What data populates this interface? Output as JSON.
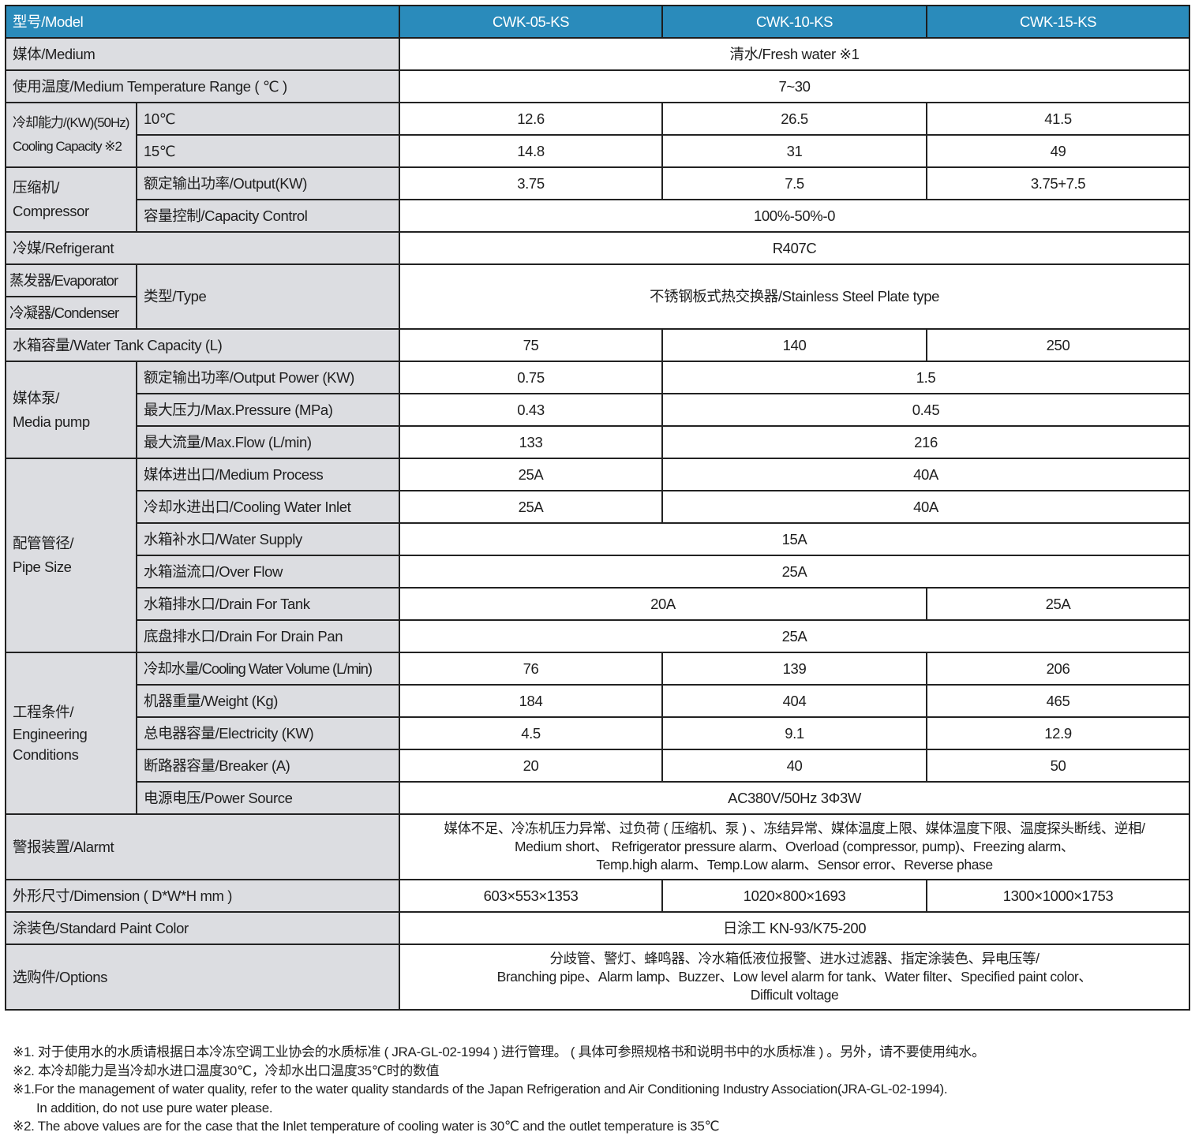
{
  "header": {
    "label": "型号/Model",
    "models": [
      "CWK-05-KS",
      "CWK-10-KS",
      "CWK-15-KS"
    ]
  },
  "medium": {
    "label": "媒体/Medium",
    "value": "清水/Fresh water ※1"
  },
  "temp_range": {
    "label": "使用温度/Medium Temperature Range ( ℃ )",
    "value": "7~30"
  },
  "cooling_capacity": {
    "label_cn": "冷却能力/(KW)(50Hz)",
    "label_en": "Cooling Capacity ※2",
    "rows": [
      {
        "label": "10℃",
        "values": [
          "12.6",
          "26.5",
          "41.5"
        ]
      },
      {
        "label": "15℃",
        "values": [
          "14.8",
          "31",
          "49"
        ]
      }
    ]
  },
  "compressor": {
    "label_cn": "压缩机/",
    "label_en": "Compressor",
    "output": {
      "label": "额定输出功率/Output(KW)",
      "values": [
        "3.75",
        "7.5",
        "3.75+7.5"
      ]
    },
    "capacity_control": {
      "label": "容量控制/Capacity Control",
      "value": "100%-50%-0"
    }
  },
  "refrigerant": {
    "label": "冷媒/Refrigerant",
    "value": "R407C"
  },
  "heat_exchanger": {
    "evaporator": "蒸发器/Evaporator",
    "condenser": "冷凝器/Condenser",
    "type_label": "类型/Type",
    "value": "不锈钢板式热交换器/Stainless Steel Plate type"
  },
  "water_tank": {
    "label": "水箱容量/Water Tank Capacity (L)",
    "values": [
      "75",
      "140",
      "250"
    ]
  },
  "media_pump": {
    "label_cn": "媒体泵/",
    "label_en": "Media pump",
    "output": {
      "label": "额定输出功率/Output Power (KW)",
      "values": [
        "0.75",
        "1.5"
      ]
    },
    "pressure": {
      "label": "最大压力/Max.Pressure (MPa)",
      "values": [
        "0.43",
        "0.45"
      ]
    },
    "flow": {
      "label": "最大流量/Max.Flow (L/min)",
      "values": [
        "133",
        "216"
      ]
    }
  },
  "pipe_size": {
    "label_cn": "配管管径/",
    "label_en": "Pipe Size",
    "medium_process": {
      "label": "媒体进出口/Medium Process",
      "values": [
        "25A",
        "40A"
      ]
    },
    "cooling_inlet": {
      "label": "冷却水进出口/Cooling Water Inlet",
      "values": [
        "25A",
        "40A"
      ]
    },
    "water_supply": {
      "label": "水箱补水口/Water Supply",
      "value": "15A"
    },
    "over_flow": {
      "label": "水箱溢流口/Over Flow",
      "value": "25A"
    },
    "drain_tank": {
      "label": "水箱排水口/Drain For Tank",
      "values": [
        "20A",
        "25A"
      ]
    },
    "drain_pan": {
      "label": "底盘排水口/Drain For Drain Pan",
      "value": "25A"
    }
  },
  "engineering": {
    "label_cn": "工程条件/",
    "label_en1": "Engineering",
    "label_en2": "Conditions",
    "cooling_water": {
      "label": "冷却水量/Cooling Water Volume (L/min)",
      "values": [
        "76",
        "139",
        "206"
      ]
    },
    "weight": {
      "label": "机器重量/Weight (Kg)",
      "values": [
        "184",
        "404",
        "465"
      ]
    },
    "electricity": {
      "label": "总电器容量/Electricity (KW)",
      "values": [
        "4.5",
        "9.1",
        "12.9"
      ]
    },
    "breaker": {
      "label": "断路器容量/Breaker (A)",
      "values": [
        "20",
        "40",
        "50"
      ]
    },
    "power": {
      "label": "电源电压/Power Source",
      "value": "AC380V/50Hz 3Φ3W"
    }
  },
  "alarm": {
    "label": "警报装置/Alarmt",
    "lines": [
      "媒体不足、冷冻机压力异常、过负荷 ( 压缩机、泵 ) 、冻结异常、媒体温度上限、媒体温度下限、温度探头断线、逆相/",
      "Medium short、 Refrigerator pressure alarm、Overload (compressor, pump)、Freezing alarm、",
      "Temp.high alarm、Temp.Low alarm、Sensor error、Reverse phase"
    ]
  },
  "dimension": {
    "label": "外形尺寸/Dimension ( D*W*H mm )",
    "values": [
      "603×553×1353",
      "1020×800×1693",
      "1300×1000×1753"
    ]
  },
  "paint": {
    "label": "涂装色/Standard Paint Color",
    "value": "日涂工 KN-93/K75-200"
  },
  "options": {
    "label": "选购件/Options",
    "lines": [
      "分歧管、警灯、蜂鸣器、冷水箱低液位报警、进水过滤器、指定涂装色、异电压等/",
      "Branching pipe、Alarm lamp、Buzzer、Low level alarm for tank、Water filter、Specified paint color、",
      "Difficult voltage"
    ]
  },
  "notes": [
    "※1. 对于使用水的水质请根据日本冷冻空调工业协会的水质标准 ( JRA-GL-02-1994 ) 进行管理。 ( 具体可参照规格书和说明书中的水质标准 ) 。另外，请不要使用纯水。",
    "※2. 本冷却能力是当冷却水进口温度30℃，冷却水出口温度35℃时的数值",
    "※1.For the management of water quality, refer to the water quality standards of the Japan Refrigeration and Air Conditioning Industry Association(JRA-GL-02-1994).",
    "In addition, do not use pure water please.",
    "※2. The above values are for the case that the Inlet temperature of cooling water is 30℃ and the outlet temperature is 35℃"
  ],
  "colors": {
    "header": "#2a8bbb",
    "label_bg": "#dcdde1",
    "border": "#222222"
  }
}
